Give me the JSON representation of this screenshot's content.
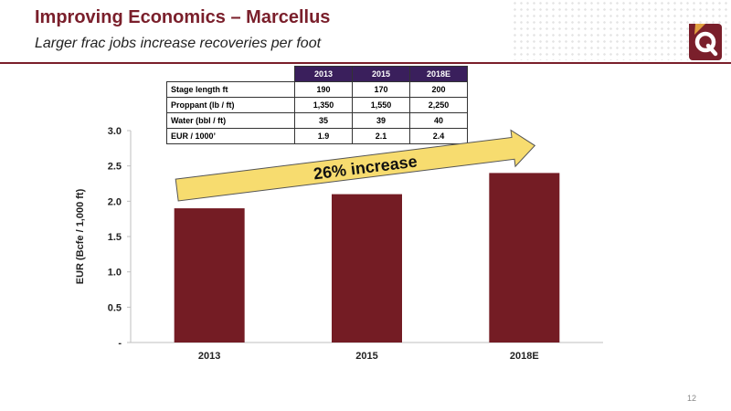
{
  "header": {
    "title": "Improving Economics – Marcellus",
    "subtitle": "Larger frac jobs increase recoveries per foot"
  },
  "table": {
    "columns": [
      "2013",
      "2015",
      "2018E"
    ],
    "rows": [
      {
        "label": "Stage length ft",
        "values": [
          "190",
          "170",
          "200"
        ]
      },
      {
        "label": "Proppant (lb / ft)",
        "values": [
          "1,350",
          "1,550",
          "2,250"
        ]
      },
      {
        "label": "Water (bbl / ft)",
        "values": [
          "35",
          "39",
          "40"
        ]
      },
      {
        "label": "EUR / 1000’",
        "values": [
          "1.9",
          "2.1",
          "2.4"
        ]
      }
    ]
  },
  "chart_data": {
    "type": "bar",
    "categories": [
      "2013",
      "2015",
      "2018E"
    ],
    "values": [
      1.9,
      2.1,
      2.4
    ],
    "title": "",
    "xlabel": "",
    "ylabel": "EUR (Bcfe / 1,000 ft)",
    "ylim": [
      0,
      3.0
    ],
    "yticks": [
      0,
      0.5,
      1.0,
      1.5,
      2.0,
      2.5,
      3.0
    ],
    "ytick_labels": [
      "-",
      "0.5",
      "1.0",
      "1.5",
      "2.0",
      "2.5",
      "3.0"
    ],
    "grid": false,
    "bar_color": "#741c24",
    "annotation": "26% increase",
    "annotation_color": "#f7dc6f"
  },
  "footer": {
    "page_number": "12"
  },
  "colors": {
    "brand": "#7a1f2b",
    "table_header": "#3a1f5c"
  }
}
